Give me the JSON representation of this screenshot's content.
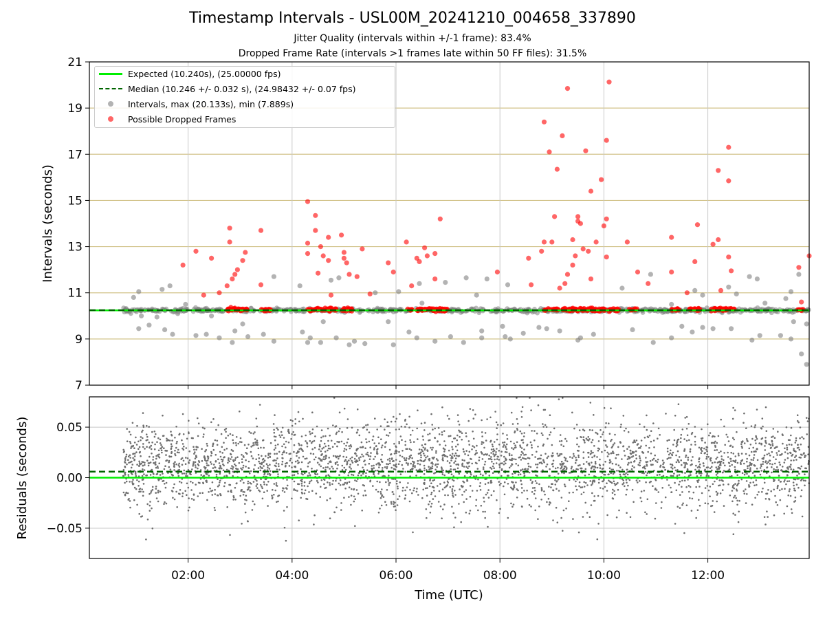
{
  "figure": {
    "title": "Timestamp Intervals - USL00M_20241210_004658_337890",
    "subtitle_1": "Jitter Quality (intervals within +/-1 frame): 83.4%",
    "subtitle_2": "Dropped Frame Rate (intervals >1 frames late within 50 FF files): 31.5%"
  },
  "legend": {
    "expected": "Expected (10.240s), (25.00000 fps)",
    "median": "Median (10.246 +/- 0.032 s), (24.98432 +/- 0.07 fps)",
    "intervals": "Intervals, max (20.133s), min (7.889s)",
    "dropped": "Possible Dropped Frames"
  },
  "colors": {
    "expected_line": "#00ee00",
    "median_line": "#006400",
    "interval_points": "#808080",
    "dropped_points": "#ff0000",
    "hgrid_top": "#d2c38a",
    "vgrid": "#c8c8c8",
    "residual_points": "#6e6e6e"
  },
  "chart_data": [
    {
      "type": "scatter",
      "panel": "intervals",
      "xlabel": "",
      "ylabel": "Intervals (seconds)",
      "xlim_hours": [
        0.1,
        13.95
      ],
      "ylim": [
        7,
        21
      ],
      "yticks": [
        "7",
        "9",
        "11",
        "13",
        "15",
        "17",
        "19",
        "21"
      ],
      "grid": true,
      "legend_position": "upper-left",
      "expected_value": 10.24,
      "median_value": 10.246,
      "interval_max": 20.133,
      "interval_min": 7.889,
      "series": [
        {
          "name": "Intervals, max (20.133s), min (7.889s)",
          "points": [
            [
              0.8,
              10.24
            ],
            [
              0.95,
              10.8
            ],
            [
              1.05,
              11.05
            ],
            [
              1.05,
              9.45
            ],
            [
              1.1,
              10.0
            ],
            [
              1.25,
              9.6
            ],
            [
              1.4,
              9.95
            ],
            [
              1.5,
              11.15
            ],
            [
              1.55,
              9.4
            ],
            [
              1.65,
              11.3
            ],
            [
              1.7,
              9.2
            ],
            [
              1.8,
              10.1
            ],
            [
              1.95,
              10.5
            ],
            [
              2.15,
              9.15
            ],
            [
              2.35,
              9.2
            ],
            [
              2.45,
              10.0
            ],
            [
              2.6,
              9.05
            ],
            [
              2.85,
              8.85
            ],
            [
              2.9,
              9.35
            ],
            [
              3.05,
              9.65
            ],
            [
              3.15,
              9.1
            ],
            [
              3.45,
              9.2
            ],
            [
              3.65,
              11.7
            ],
            [
              3.65,
              8.9
            ],
            [
              4.15,
              11.3
            ],
            [
              4.2,
              9.3
            ],
            [
              4.3,
              8.85
            ],
            [
              4.35,
              9.05
            ],
            [
              4.55,
              8.85
            ],
            [
              4.6,
              9.75
            ],
            [
              4.75,
              11.55
            ],
            [
              4.85,
              9.05
            ],
            [
              4.9,
              11.65
            ],
            [
              5.1,
              8.75
            ],
            [
              5.2,
              8.9
            ],
            [
              5.4,
              8.8
            ],
            [
              5.6,
              11.0
            ],
            [
              5.85,
              9.75
            ],
            [
              5.95,
              8.75
            ],
            [
              6.05,
              11.05
            ],
            [
              6.25,
              9.3
            ],
            [
              6.4,
              9.05
            ],
            [
              6.45,
              11.4
            ],
            [
              6.5,
              10.55
            ],
            [
              6.75,
              8.9
            ],
            [
              6.95,
              11.45
            ],
            [
              7.05,
              9.1
            ],
            [
              7.3,
              8.85
            ],
            [
              7.35,
              11.65
            ],
            [
              7.55,
              10.9
            ],
            [
              7.65,
              9.05
            ],
            [
              7.65,
              9.35
            ],
            [
              7.75,
              11.6
            ],
            [
              8.05,
              9.55
            ],
            [
              8.1,
              9.1
            ],
            [
              8.15,
              11.35
            ],
            [
              8.2,
              9.0
            ],
            [
              8.45,
              9.25
            ],
            [
              8.75,
              9.5
            ],
            [
              8.9,
              9.45
            ],
            [
              9.15,
              9.35
            ],
            [
              9.5,
              8.95
            ],
            [
              9.55,
              9.05
            ],
            [
              9.8,
              9.2
            ],
            [
              10.35,
              11.2
            ],
            [
              10.55,
              9.4
            ],
            [
              10.9,
              11.8
            ],
            [
              10.95,
              8.85
            ],
            [
              11.3,
              10.5
            ],
            [
              11.3,
              9.05
            ],
            [
              11.5,
              9.55
            ],
            [
              11.7,
              9.3
            ],
            [
              11.75,
              11.1
            ],
            [
              11.9,
              9.5
            ],
            [
              11.9,
              10.9
            ],
            [
              12.1,
              9.45
            ],
            [
              12.4,
              11.25
            ],
            [
              12.45,
              9.45
            ],
            [
              12.55,
              10.95
            ],
            [
              12.8,
              11.7
            ],
            [
              12.85,
              8.95
            ],
            [
              12.95,
              11.6
            ],
            [
              13.0,
              9.15
            ],
            [
              13.1,
              10.55
            ],
            [
              13.4,
              9.15
            ],
            [
              13.5,
              10.75
            ],
            [
              13.6,
              11.05
            ],
            [
              13.6,
              9.0
            ],
            [
              13.65,
              9.75
            ],
            [
              13.75,
              11.8
            ],
            [
              13.8,
              8.35
            ],
            [
              13.9,
              7.9
            ],
            [
              13.9,
              9.65
            ]
          ],
          "band_range": [
            0.75,
            13.95
          ],
          "band_center": 10.24
        },
        {
          "name": "Possible Dropped Frames",
          "points": [
            [
              1.9,
              12.2
            ],
            [
              2.15,
              12.8
            ],
            [
              2.3,
              10.9
            ],
            [
              2.45,
              12.5
            ],
            [
              2.6,
              11.0
            ],
            [
              2.75,
              11.3
            ],
            [
              2.8,
              13.8
            ],
            [
              2.8,
              13.2
            ],
            [
              2.85,
              11.6
            ],
            [
              2.9,
              11.8
            ],
            [
              2.95,
              12.0
            ],
            [
              3.05,
              12.4
            ],
            [
              3.1,
              12.75
            ],
            [
              3.4,
              11.35
            ],
            [
              3.4,
              13.7
            ],
            [
              4.3,
              14.95
            ],
            [
              4.3,
              13.15
            ],
            [
              4.3,
              12.7
            ],
            [
              4.45,
              14.35
            ],
            [
              4.45,
              13.7
            ],
            [
              4.5,
              11.85
            ],
            [
              4.55,
              13.0
            ],
            [
              4.6,
              12.6
            ],
            [
              4.7,
              12.4
            ],
            [
              4.7,
              13.4
            ],
            [
              4.75,
              10.9
            ],
            [
              4.95,
              13.5
            ],
            [
              5.0,
              12.75
            ],
            [
              5.0,
              12.5
            ],
            [
              5.05,
              12.3
            ],
            [
              5.1,
              11.8
            ],
            [
              5.25,
              11.7
            ],
            [
              5.35,
              12.9
            ],
            [
              5.5,
              10.95
            ],
            [
              5.85,
              12.3
            ],
            [
              5.95,
              11.9
            ],
            [
              6.2,
              13.2
            ],
            [
              6.3,
              11.3
            ],
            [
              6.4,
              12.5
            ],
            [
              6.45,
              12.35
            ],
            [
              6.55,
              12.95
            ],
            [
              6.6,
              12.6
            ],
            [
              6.75,
              12.7
            ],
            [
              6.75,
              11.6
            ],
            [
              6.85,
              14.2
            ],
            [
              7.95,
              11.9
            ],
            [
              8.55,
              12.5
            ],
            [
              8.6,
              11.35
            ],
            [
              8.8,
              12.8
            ],
            [
              8.85,
              13.2
            ],
            [
              8.85,
              18.4
            ],
            [
              8.95,
              17.1
            ],
            [
              9.0,
              13.2
            ],
            [
              9.05,
              14.3
            ],
            [
              9.1,
              16.35
            ],
            [
              9.15,
              11.2
            ],
            [
              9.2,
              17.8
            ],
            [
              9.25,
              11.4
            ],
            [
              9.3,
              19.85
            ],
            [
              9.3,
              11.8
            ],
            [
              9.4,
              12.2
            ],
            [
              9.4,
              13.3
            ],
            [
              9.45,
              12.6
            ],
            [
              9.5,
              14.3
            ],
            [
              9.5,
              14.1
            ],
            [
              9.55,
              14.0
            ],
            [
              9.6,
              12.9
            ],
            [
              9.65,
              17.15
            ],
            [
              9.7,
              12.8
            ],
            [
              9.75,
              15.4
            ],
            [
              9.75,
              11.6
            ],
            [
              9.85,
              13.2
            ],
            [
              9.95,
              15.9
            ],
            [
              10.0,
              13.9
            ],
            [
              10.05,
              17.6
            ],
            [
              10.05,
              14.2
            ],
            [
              10.05,
              12.55
            ],
            [
              10.1,
              20.13
            ],
            [
              10.45,
              13.2
            ],
            [
              10.65,
              11.9
            ],
            [
              10.85,
              11.4
            ],
            [
              11.3,
              13.4
            ],
            [
              11.3,
              11.9
            ],
            [
              11.6,
              11.0
            ],
            [
              11.75,
              12.35
            ],
            [
              11.8,
              13.95
            ],
            [
              12.1,
              13.1
            ],
            [
              12.2,
              13.3
            ],
            [
              12.2,
              16.3
            ],
            [
              12.25,
              11.1
            ],
            [
              12.4,
              12.55
            ],
            [
              12.4,
              15.85
            ],
            [
              12.4,
              17.3
            ],
            [
              12.45,
              11.95
            ],
            [
              13.75,
              12.1
            ],
            [
              13.8,
              10.6
            ],
            [
              13.95,
              12.6
            ]
          ],
          "band_range": [
            2.8,
            12.55
          ],
          "band_center": 10.27
        }
      ]
    },
    {
      "type": "scatter",
      "panel": "residuals",
      "xlabel": "Time (UTC)",
      "ylabel": "Residuals (seconds)",
      "xlim_hours": [
        0.1,
        13.95
      ],
      "ylim": [
        -0.08,
        0.08
      ],
      "yticks": [
        "−0.05",
        "0.00",
        "0.05"
      ],
      "ytick_values": [
        -0.05,
        0,
        0.05
      ],
      "xtick_hours": [
        2,
        4,
        6,
        8,
        10,
        12
      ],
      "xticks": [
        "02:00",
        "04:00",
        "06:00",
        "08:00",
        "10:00",
        "12:00"
      ],
      "grid": true,
      "expected_residual": 0.0,
      "median_residual": 0.006,
      "sample_count": 3400,
      "residual_spread": 0.022
    }
  ]
}
